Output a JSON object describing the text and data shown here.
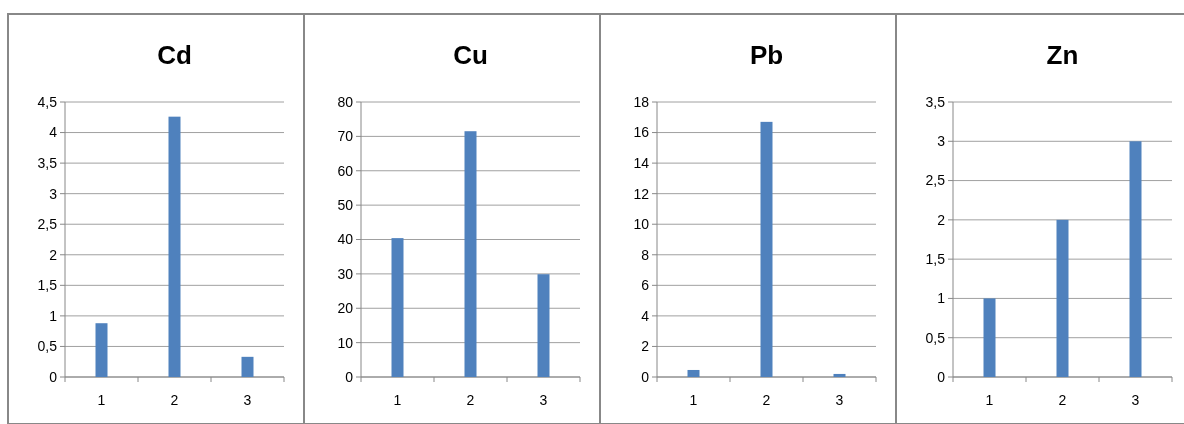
{
  "chart_data": [
    {
      "type": "bar",
      "title": "Cd",
      "categories": [
        "1",
        "2",
        "3"
      ],
      "values": [
        0.88,
        4.26,
        0.33
      ],
      "color": "#4f81bd",
      "ylim": [
        0,
        4.5
      ],
      "yticks": [
        0,
        {
          "value": 0.5,
          "label": "0,5"
        },
        1,
        {
          "value": 1.5,
          "label": "1,5"
        },
        2,
        {
          "value": 2.5,
          "label": "2,5"
        },
        3,
        {
          "value": 3.5,
          "label": "3,5"
        },
        4,
        {
          "value": 4.5,
          "label": "4,5"
        }
      ],
      "grid": "y"
    },
    {
      "type": "bar",
      "title": "Cu",
      "categories": [
        "1",
        "2",
        "3"
      ],
      "values": [
        40.4,
        71.5,
        29.9
      ],
      "color": "#4f81bd",
      "ylim": [
        0,
        80
      ],
      "yticks": [
        0,
        10,
        20,
        30,
        40,
        50,
        60,
        70,
        80
      ],
      "grid": "y"
    },
    {
      "type": "bar",
      "title": "Pb",
      "categories": [
        "1",
        "2",
        "3"
      ],
      "values": [
        0.46,
        16.7,
        0.2
      ],
      "color": "#4f81bd",
      "ylim": [
        0,
        18
      ],
      "yticks": [
        0,
        2,
        4,
        6,
        8,
        10,
        12,
        14,
        16,
        18
      ],
      "grid": "y"
    },
    {
      "type": "bar",
      "title": "Zn",
      "categories": [
        "1",
        "2",
        "3"
      ],
      "values": [
        1,
        2,
        3
      ],
      "color": "#4f81bd",
      "ylim": [
        0,
        3.5
      ],
      "yticks": [
        0,
        {
          "value": 0.5,
          "label": "0,5"
        },
        1,
        {
          "value": 1.5,
          "label": "1,5"
        },
        2,
        {
          "value": 2.5,
          "label": "2,5"
        },
        3,
        {
          "value": 3.5,
          "label": "3,5"
        }
      ],
      "grid": "y"
    }
  ]
}
